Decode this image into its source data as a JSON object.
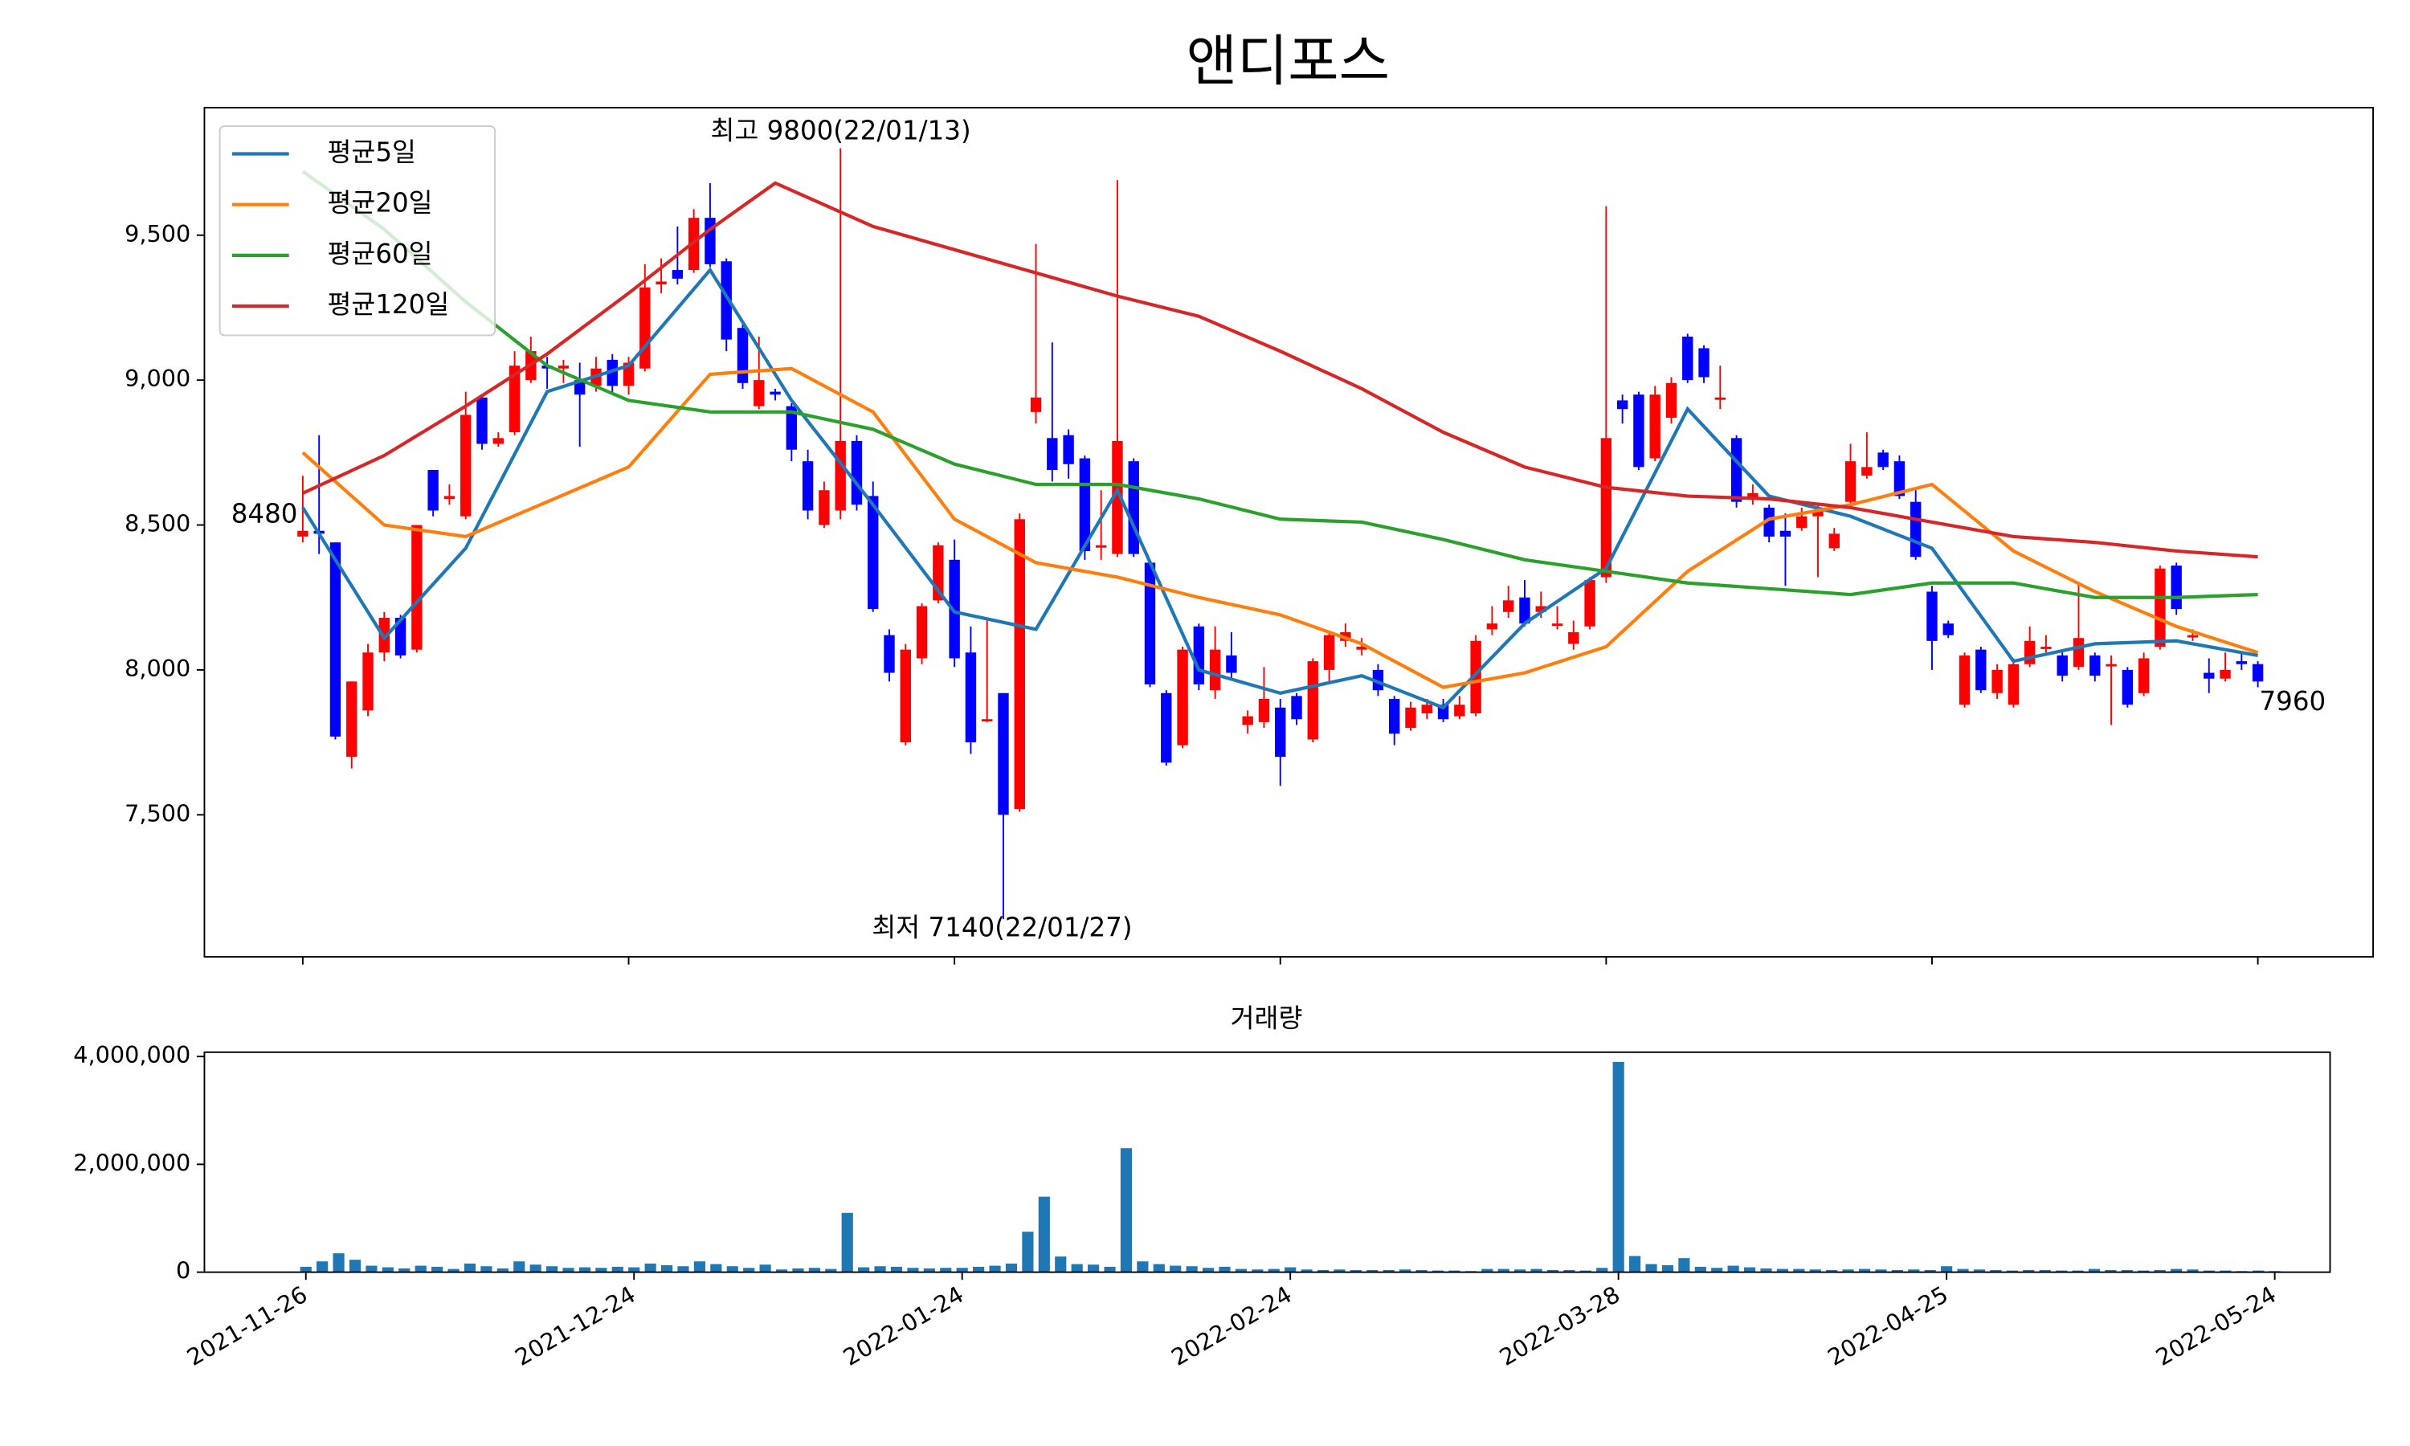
{
  "chart_data": [
    {
      "type": "candlestick",
      "title": "앤디포스",
      "open": [
        8460,
        8480,
        8440,
        7700,
        7860,
        8060,
        8180,
        8070,
        8690,
        8590,
        8530,
        8940,
        8780,
        8820,
        9000,
        9050,
        9040,
        9000,
        8980,
        9070,
        8980,
        9040,
        9330,
        9380,
        9380,
        9560,
        9410,
        9180,
        8910,
        8960,
        8910,
        8720,
        8500,
        8550,
        8790,
        8600,
        8120,
        7750,
        8040,
        8240,
        8380,
        8060,
        7830,
        7920,
        7520,
        8890,
        8800,
        8810,
        8730,
        8430,
        8400,
        8720,
        8370,
        7920,
        7740,
        8150,
        7930,
        8050,
        7810,
        7820,
        7870,
        7910,
        7760,
        8000,
        8100,
        8070,
        8000,
        7900,
        7800,
        7850,
        7880,
        7840,
        7850,
        8140,
        8200,
        8250,
        8200,
        8160,
        8090,
        8150,
        8320,
        8930,
        8950,
        8730,
        8870,
        9150,
        9110,
        8940,
        8800,
        8590,
        8560,
        8480,
        8490,
        8530,
        8420,
        8580,
        8670,
        8750,
        8720,
        8580,
        8270,
        8160,
        7880,
        8070,
        7920,
        7880,
        8020,
        8080,
        8050,
        8010,
        8050,
        8020,
        8000,
        7920,
        8080,
        8360,
        8120,
        7990,
        7970,
        8030,
        8020
      ],
      "high": [
        8670,
        8810,
        8440,
        7960,
        8090,
        8200,
        8190,
        8500,
        8690,
        8640,
        8960,
        8950,
        8820,
        9100,
        9150,
        9080,
        9070,
        9060,
        9080,
        9090,
        9080,
        9400,
        9420,
        9530,
        9590,
        9680,
        9420,
        9200,
        9150,
        8970,
        8920,
        8760,
        8650,
        9800,
        8810,
        8650,
        8140,
        8090,
        8230,
        8440,
        8450,
        8150,
        8170,
        7920,
        8540,
        9470,
        9130,
        8830,
        8740,
        8620,
        9690,
        8730,
        8380,
        7930,
        8080,
        8160,
        8150,
        8130,
        7860,
        8010,
        7900,
        7920,
        8040,
        8130,
        8160,
        8110,
        8020,
        7910,
        7890,
        7900,
        7900,
        7910,
        8120,
        8220,
        8290,
        8310,
        8270,
        8220,
        8170,
        8320,
        9600,
        8950,
        8960,
        8980,
        9010,
        9160,
        9120,
        9050,
        8810,
        8640,
        8570,
        8540,
        8560,
        8570,
        8490,
        8780,
        8820,
        8760,
        8740,
        8620,
        8290,
        8170,
        8060,
        8080,
        8020,
        8040,
        8150,
        8120,
        8070,
        8300,
        8060,
        8050,
        8010,
        8060,
        8360,
        8370,
        8140,
        8040,
        8060,
        8060,
        8030
      ],
      "low": [
        8440,
        8400,
        7760,
        7660,
        7840,
        8030,
        8040,
        8060,
        8530,
        8570,
        8520,
        8760,
        8770,
        8810,
        8990,
        8970,
        8990,
        8770,
        8960,
        8950,
        8950,
        9030,
        9300,
        9330,
        9370,
        9390,
        9100,
        8970,
        8900,
        8930,
        8720,
        8520,
        8490,
        8520,
        8550,
        8200,
        7960,
        7740,
        8020,
        8230,
        8010,
        7710,
        7820,
        7140,
        7510,
        8850,
        8650,
        8660,
        8380,
        8380,
        8390,
        8390,
        7940,
        7670,
        7730,
        7930,
        7900,
        7970,
        7780,
        7800,
        7600,
        7810,
        7750,
        7960,
        8080,
        8050,
        7910,
        7740,
        7790,
        7830,
        7820,
        7830,
        7840,
        8120,
        8180,
        8150,
        8180,
        8140,
        8070,
        8140,
        8300,
        8850,
        8690,
        8720,
        8850,
        8990,
        8990,
        8900,
        8560,
        8570,
        8440,
        8290,
        8480,
        8320,
        8410,
        8570,
        8660,
        8690,
        8590,
        8380,
        8000,
        8110,
        7870,
        7920,
        7900,
        7870,
        8010,
        8060,
        7960,
        8000,
        7960,
        7810,
        7870,
        7910,
        8070,
        8190,
        8100,
        7920,
        7960,
        8000,
        7940
      ],
      "close": [
        8480,
        8470,
        7770,
        7960,
        8060,
        8180,
        8050,
        8500,
        8550,
        8600,
        8880,
        8780,
        8800,
        9050,
        9100,
        9040,
        9050,
        8950,
        9040,
        8980,
        9060,
        9320,
        9340,
        9350,
        9560,
        9400,
        9140,
        8990,
        9000,
        8950,
        8760,
        8550,
        8620,
        8790,
        8570,
        8210,
        7990,
        8070,
        8220,
        8430,
        8040,
        7750,
        7830,
        7500,
        8520,
        8940,
        8690,
        8710,
        8410,
        8430,
        8790,
        8400,
        7950,
        7680,
        8070,
        7950,
        8070,
        7990,
        7840,
        7900,
        7700,
        7830,
        8030,
        8120,
        8130,
        8080,
        7930,
        7780,
        7870,
        7880,
        7830,
        7880,
        8100,
        8160,
        8240,
        8160,
        8220,
        8160,
        8130,
        8310,
        8800,
        8900,
        8700,
        8950,
        8990,
        9000,
        9010,
        8940,
        8580,
        8610,
        8460,
        8460,
        8530,
        8550,
        8470,
        8720,
        8700,
        8700,
        8600,
        8390,
        8100,
        8120,
        8050,
        7930,
        8000,
        8020,
        8100,
        8080,
        7980,
        8110,
        7980,
        8020,
        7880,
        8040,
        8350,
        8210,
        8120,
        7970,
        8000,
        8020,
        7960
      ],
      "up_color": "#ff0000",
      "down_color": "#0000ff",
      "lines": [
        {
          "name": "평균5일",
          "color": "#1f77b4",
          "x": [
            0,
            5,
            10,
            15,
            20,
            25,
            30,
            35,
            40,
            45,
            50,
            55,
            60,
            65,
            70,
            75,
            80,
            85,
            90,
            95,
            100,
            105,
            110,
            115,
            120
          ],
          "values": [
            8560,
            8110,
            8420,
            8960,
            9050,
            9380,
            8930,
            8570,
            8200,
            8140,
            8620,
            8000,
            7920,
            7980,
            7870,
            8160,
            8350,
            8900,
            8600,
            8530,
            8420,
            8030,
            8090,
            8100,
            8050
          ]
        },
        {
          "name": "평균20일",
          "color": "#ff7f0e",
          "x": [
            0,
            5,
            10,
            15,
            20,
            25,
            30,
            35,
            40,
            45,
            50,
            55,
            60,
            65,
            70,
            75,
            80,
            85,
            90,
            95,
            100,
            105,
            110,
            115,
            120
          ],
          "values": [
            8750,
            8500,
            8460,
            8580,
            8700,
            9020,
            9040,
            8890,
            8520,
            8370,
            8320,
            8250,
            8190,
            8090,
            7940,
            7990,
            8080,
            8340,
            8520,
            8570,
            8640,
            8410,
            8270,
            8150,
            8060
          ]
        },
        {
          "name": "평균60일",
          "color": "#2ca02c",
          "x": [
            0,
            5,
            10,
            15,
            20,
            25,
            30,
            35,
            40,
            45,
            50,
            55,
            60,
            65,
            70,
            75,
            80,
            85,
            90,
            95,
            100,
            105,
            110,
            115,
            120
          ],
          "values": [
            9720,
            9520,
            9270,
            9050,
            8930,
            8890,
            8890,
            8830,
            8710,
            8640,
            8640,
            8590,
            8520,
            8510,
            8450,
            8380,
            8340,
            8300,
            8280,
            8260,
            8300,
            8300,
            8250,
            8250,
            8260
          ]
        },
        {
          "name": "평균120일",
          "color": "#d62728",
          "x": [
            0,
            5,
            10,
            15,
            20,
            25,
            29,
            35,
            40,
            45,
            50,
            55,
            60,
            65,
            70,
            75,
            80,
            85,
            90,
            95,
            100,
            105,
            110,
            115,
            120
          ],
          "values": [
            8610,
            8740,
            8910,
            9090,
            9300,
            9520,
            9680,
            9530,
            9450,
            9370,
            9290,
            9220,
            9100,
            8970,
            8820,
            8700,
            8630,
            8600,
            8590,
            8560,
            8510,
            8460,
            8440,
            8410,
            8390
          ]
        }
      ],
      "annotations": [
        {
          "text": "최고 9800(22/01/13)",
          "color": "#ff0000"
        },
        {
          "text": "최저 7140(22/01/27)",
          "color": "#0000ff"
        },
        {
          "text": "8480",
          "color": "#000000"
        },
        {
          "text": "7960",
          "color": "#000000"
        }
      ],
      "ylim": [
        7010,
        9940
      ],
      "yticks": [
        {
          "value": 7500,
          "label": "7,500"
        },
        {
          "value": 8000,
          "label": "8,000"
        },
        {
          "value": 8500,
          "label": "8,500"
        },
        {
          "value": 9000,
          "label": "9,000"
        },
        {
          "value": 9500,
          "label": "9,500"
        }
      ]
    },
    {
      "type": "bar",
      "title": "거래량",
      "color": "#1f77b4",
      "categories": [
        "2021-11-26",
        null,
        null,
        null,
        null,
        null,
        null,
        null,
        null,
        null,
        null,
        null,
        null,
        null,
        null,
        null,
        null,
        null,
        null,
        null,
        "2021-12-24",
        null,
        null,
        null,
        null,
        null,
        null,
        null,
        null,
        null,
        null,
        null,
        null,
        null,
        null,
        null,
        null,
        null,
        null,
        null,
        "2022-01-24",
        null,
        null,
        null,
        null,
        null,
        null,
        null,
        null,
        null,
        null,
        null,
        null,
        null,
        null,
        null,
        null,
        null,
        null,
        null,
        "2022-02-24",
        null,
        null,
        null,
        null,
        null,
        null,
        null,
        null,
        null,
        null,
        null,
        null,
        null,
        null,
        null,
        null,
        null,
        null,
        null,
        "2022-03-28",
        null,
        null,
        null,
        null,
        null,
        null,
        null,
        null,
        null,
        null,
        null,
        null,
        null,
        null,
        null,
        null,
        null,
        null,
        null,
        "2022-04-25",
        null,
        null,
        null,
        null,
        null,
        null,
        null,
        null,
        null,
        null,
        null,
        null,
        null,
        null,
        null,
        null,
        null,
        null,
        null,
        "2022-05-24"
      ],
      "values": [
        100000,
        200000,
        350000,
        230000,
        120000,
        90000,
        70000,
        120000,
        100000,
        60000,
        160000,
        110000,
        70000,
        200000,
        140000,
        110000,
        80000,
        90000,
        80000,
        100000,
        90000,
        160000,
        130000,
        110000,
        200000,
        150000,
        110000,
        80000,
        140000,
        50000,
        70000,
        80000,
        60000,
        1100000,
        90000,
        110000,
        100000,
        80000,
        70000,
        80000,
        80000,
        100000,
        120000,
        160000,
        750000,
        1400000,
        290000,
        150000,
        140000,
        100000,
        2300000,
        200000,
        150000,
        120000,
        110000,
        80000,
        100000,
        60000,
        50000,
        60000,
        90000,
        50000,
        40000,
        50000,
        40000,
        40000,
        40000,
        50000,
        40000,
        30000,
        30000,
        20000,
        60000,
        60000,
        50000,
        60000,
        40000,
        40000,
        30000,
        80000,
        3900000,
        300000,
        150000,
        130000,
        260000,
        100000,
        80000,
        120000,
        90000,
        70000,
        60000,
        60000,
        50000,
        40000,
        50000,
        60000,
        50000,
        40000,
        50000,
        40000,
        110000,
        60000,
        50000,
        40000,
        30000,
        40000,
        40000,
        30000,
        30000,
        60000,
        40000,
        40000,
        30000,
        40000,
        60000,
        50000,
        30000,
        30000,
        20000,
        30000,
        20000
      ],
      "ylim": [
        0,
        4080000
      ],
      "yticks": [
        0,
        {
          "value": 2000000,
          "label": "2,000,000"
        },
        {
          "value": 4000000,
          "label": "4,000,000"
        }
      ]
    }
  ]
}
